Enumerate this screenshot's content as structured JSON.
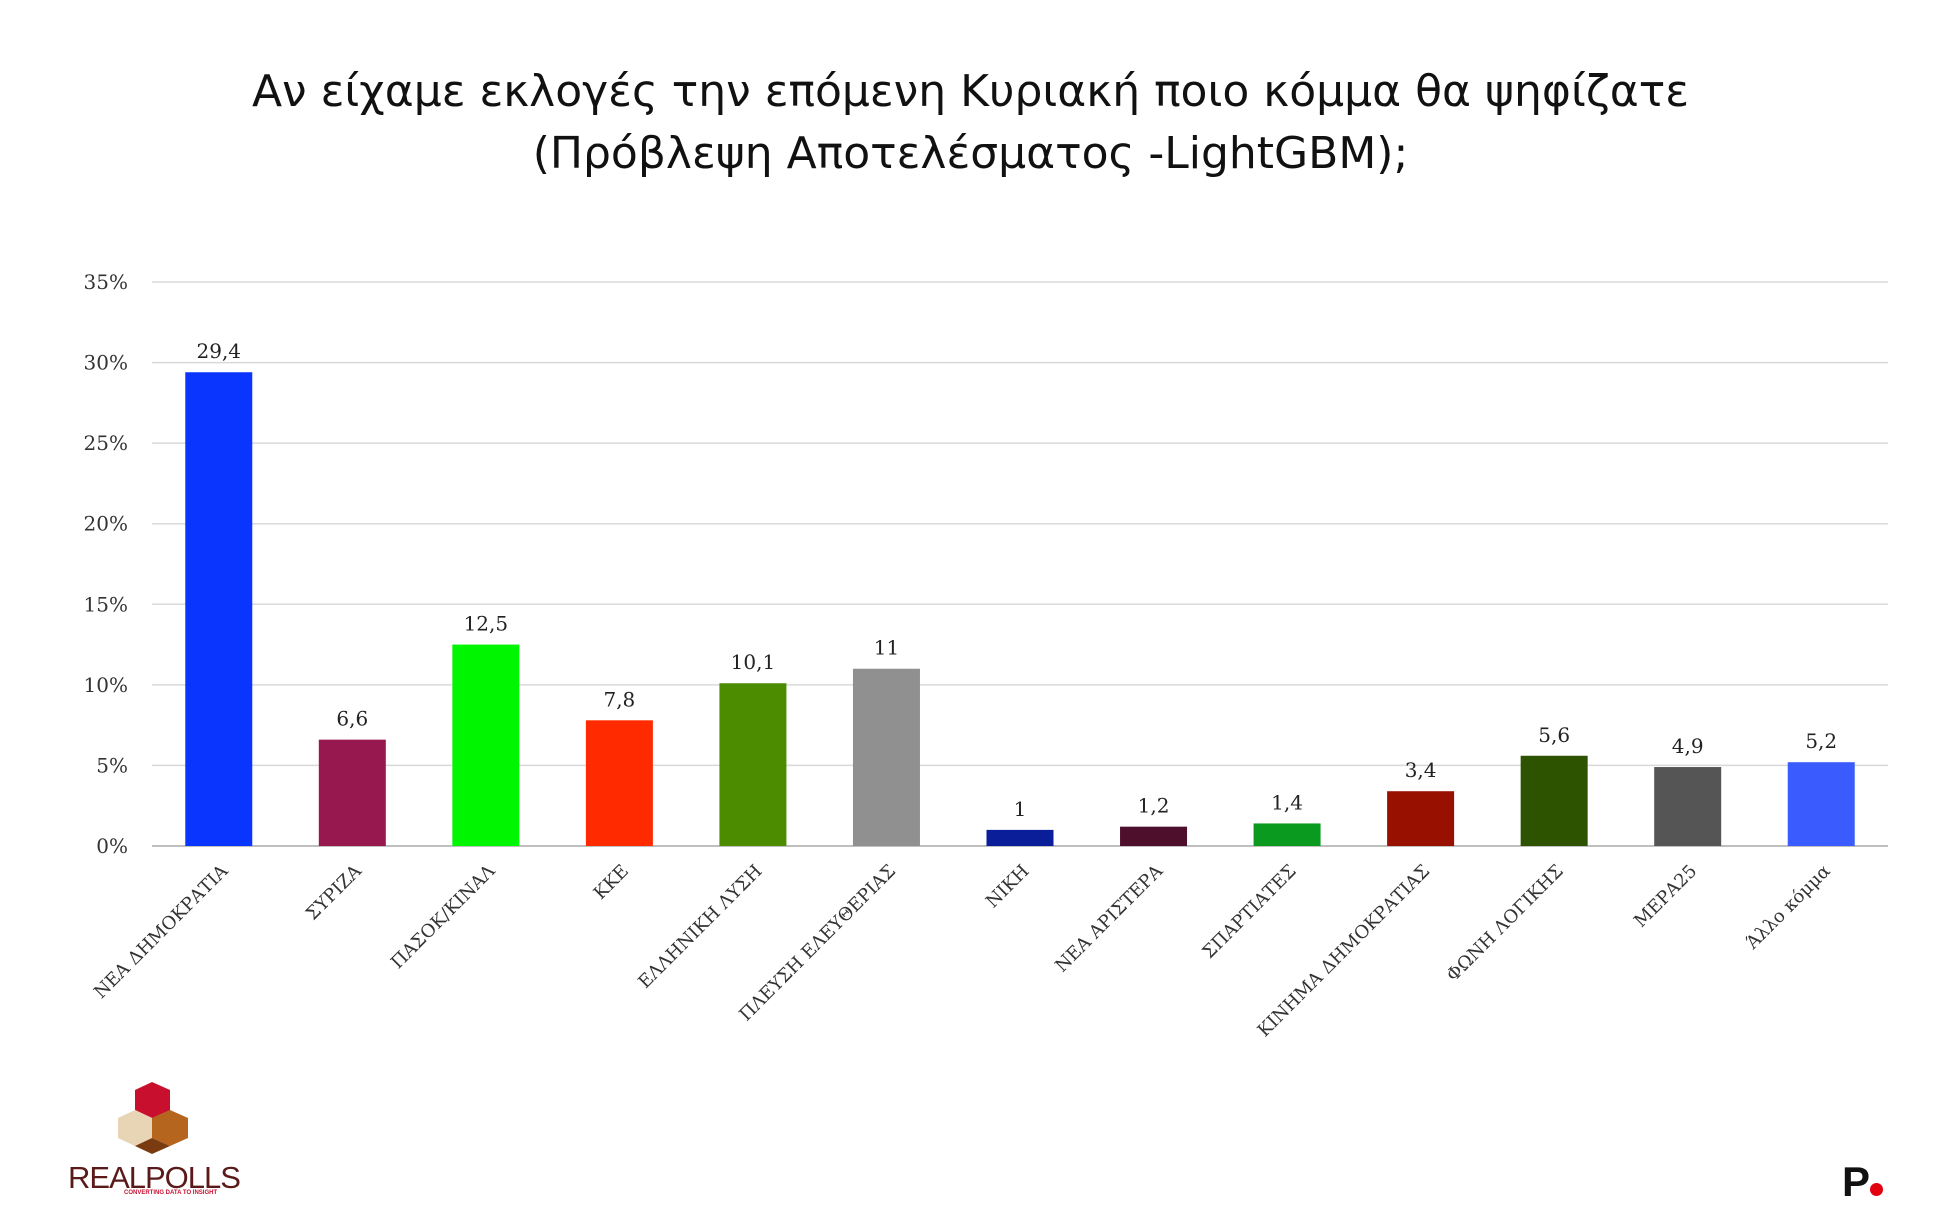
{
  "title_lines": [
    "Αν είχαμε εκλογές την επόμενη Κυριακή ποιο κόμμα θα ψηφίζατε",
    "(Πρόβλεψη Αποτελέσματος -LightGBM);"
  ],
  "logo": {
    "name": "REALPOLLS",
    "subtitle": "CONVERTING DATA TO INSIGHT",
    "corner_mark": "P."
  },
  "chart_data": {
    "type": "bar",
    "title": "Αν είχαμε εκλογές την επόμενη Κυριακή ποιο κόμμα θα ψηφίζατε (Πρόβλεψη Αποτελέσματος -LightGBM);",
    "categories": [
      "ΝΕΑ ΔΗΜΟΚΡΑΤΙΑ",
      "ΣΥΡΙΖΑ",
      "ΠΑΣΟΚ/ΚΙΝΑΛ",
      "ΚΚΕ",
      "ΕΛΛΗΝΙΚΗ ΛΥΣΗ",
      "ΠΛΕΥΣΗ ΕΛΕΥΘΕΡΙΑΣ",
      "ΝΙΚΗ",
      "ΝΕΑ ΑΡΙΣΤΕΡΑ",
      "ΣΠΑΡΤΙΑΤΕΣ",
      "ΚΙΝΗΜΑ ΔΗΜΟΚΡΑΤΙΑΣ",
      "ΦΩΝΗ ΛΟΓΙΚΗΣ",
      "ΜΕΡΑ25",
      "Άλλο κόμμα"
    ],
    "values": [
      29.4,
      6.6,
      12.5,
      7.8,
      10.1,
      11,
      1,
      1.2,
      1.4,
      3.4,
      5.6,
      4.9,
      5.2
    ],
    "value_labels": [
      "29,4",
      "6,6",
      "12,5",
      "7,8",
      "10,1",
      "11",
      "1",
      "1,2",
      "1,4",
      "3,4",
      "5,6",
      "4,9",
      "5,2"
    ],
    "colors": [
      "#0a35ff",
      "#97184f",
      "#00f500",
      "#ff2a00",
      "#4c8c00",
      "#909090",
      "#0a1e9a",
      "#4e0f2c",
      "#0a9a20",
      "#981000",
      "#2d5200",
      "#555555",
      "#3a5cff"
    ],
    "ylim": [
      0,
      35
    ],
    "yticks": [
      0,
      5,
      10,
      15,
      20,
      25,
      30,
      35
    ],
    "ytick_labels": [
      "0%",
      "5%",
      "10%",
      "15%",
      "20%",
      "25%",
      "30%",
      "35%"
    ],
    "grid": true,
    "legend": "none",
    "xlabel": "",
    "ylabel": ""
  }
}
